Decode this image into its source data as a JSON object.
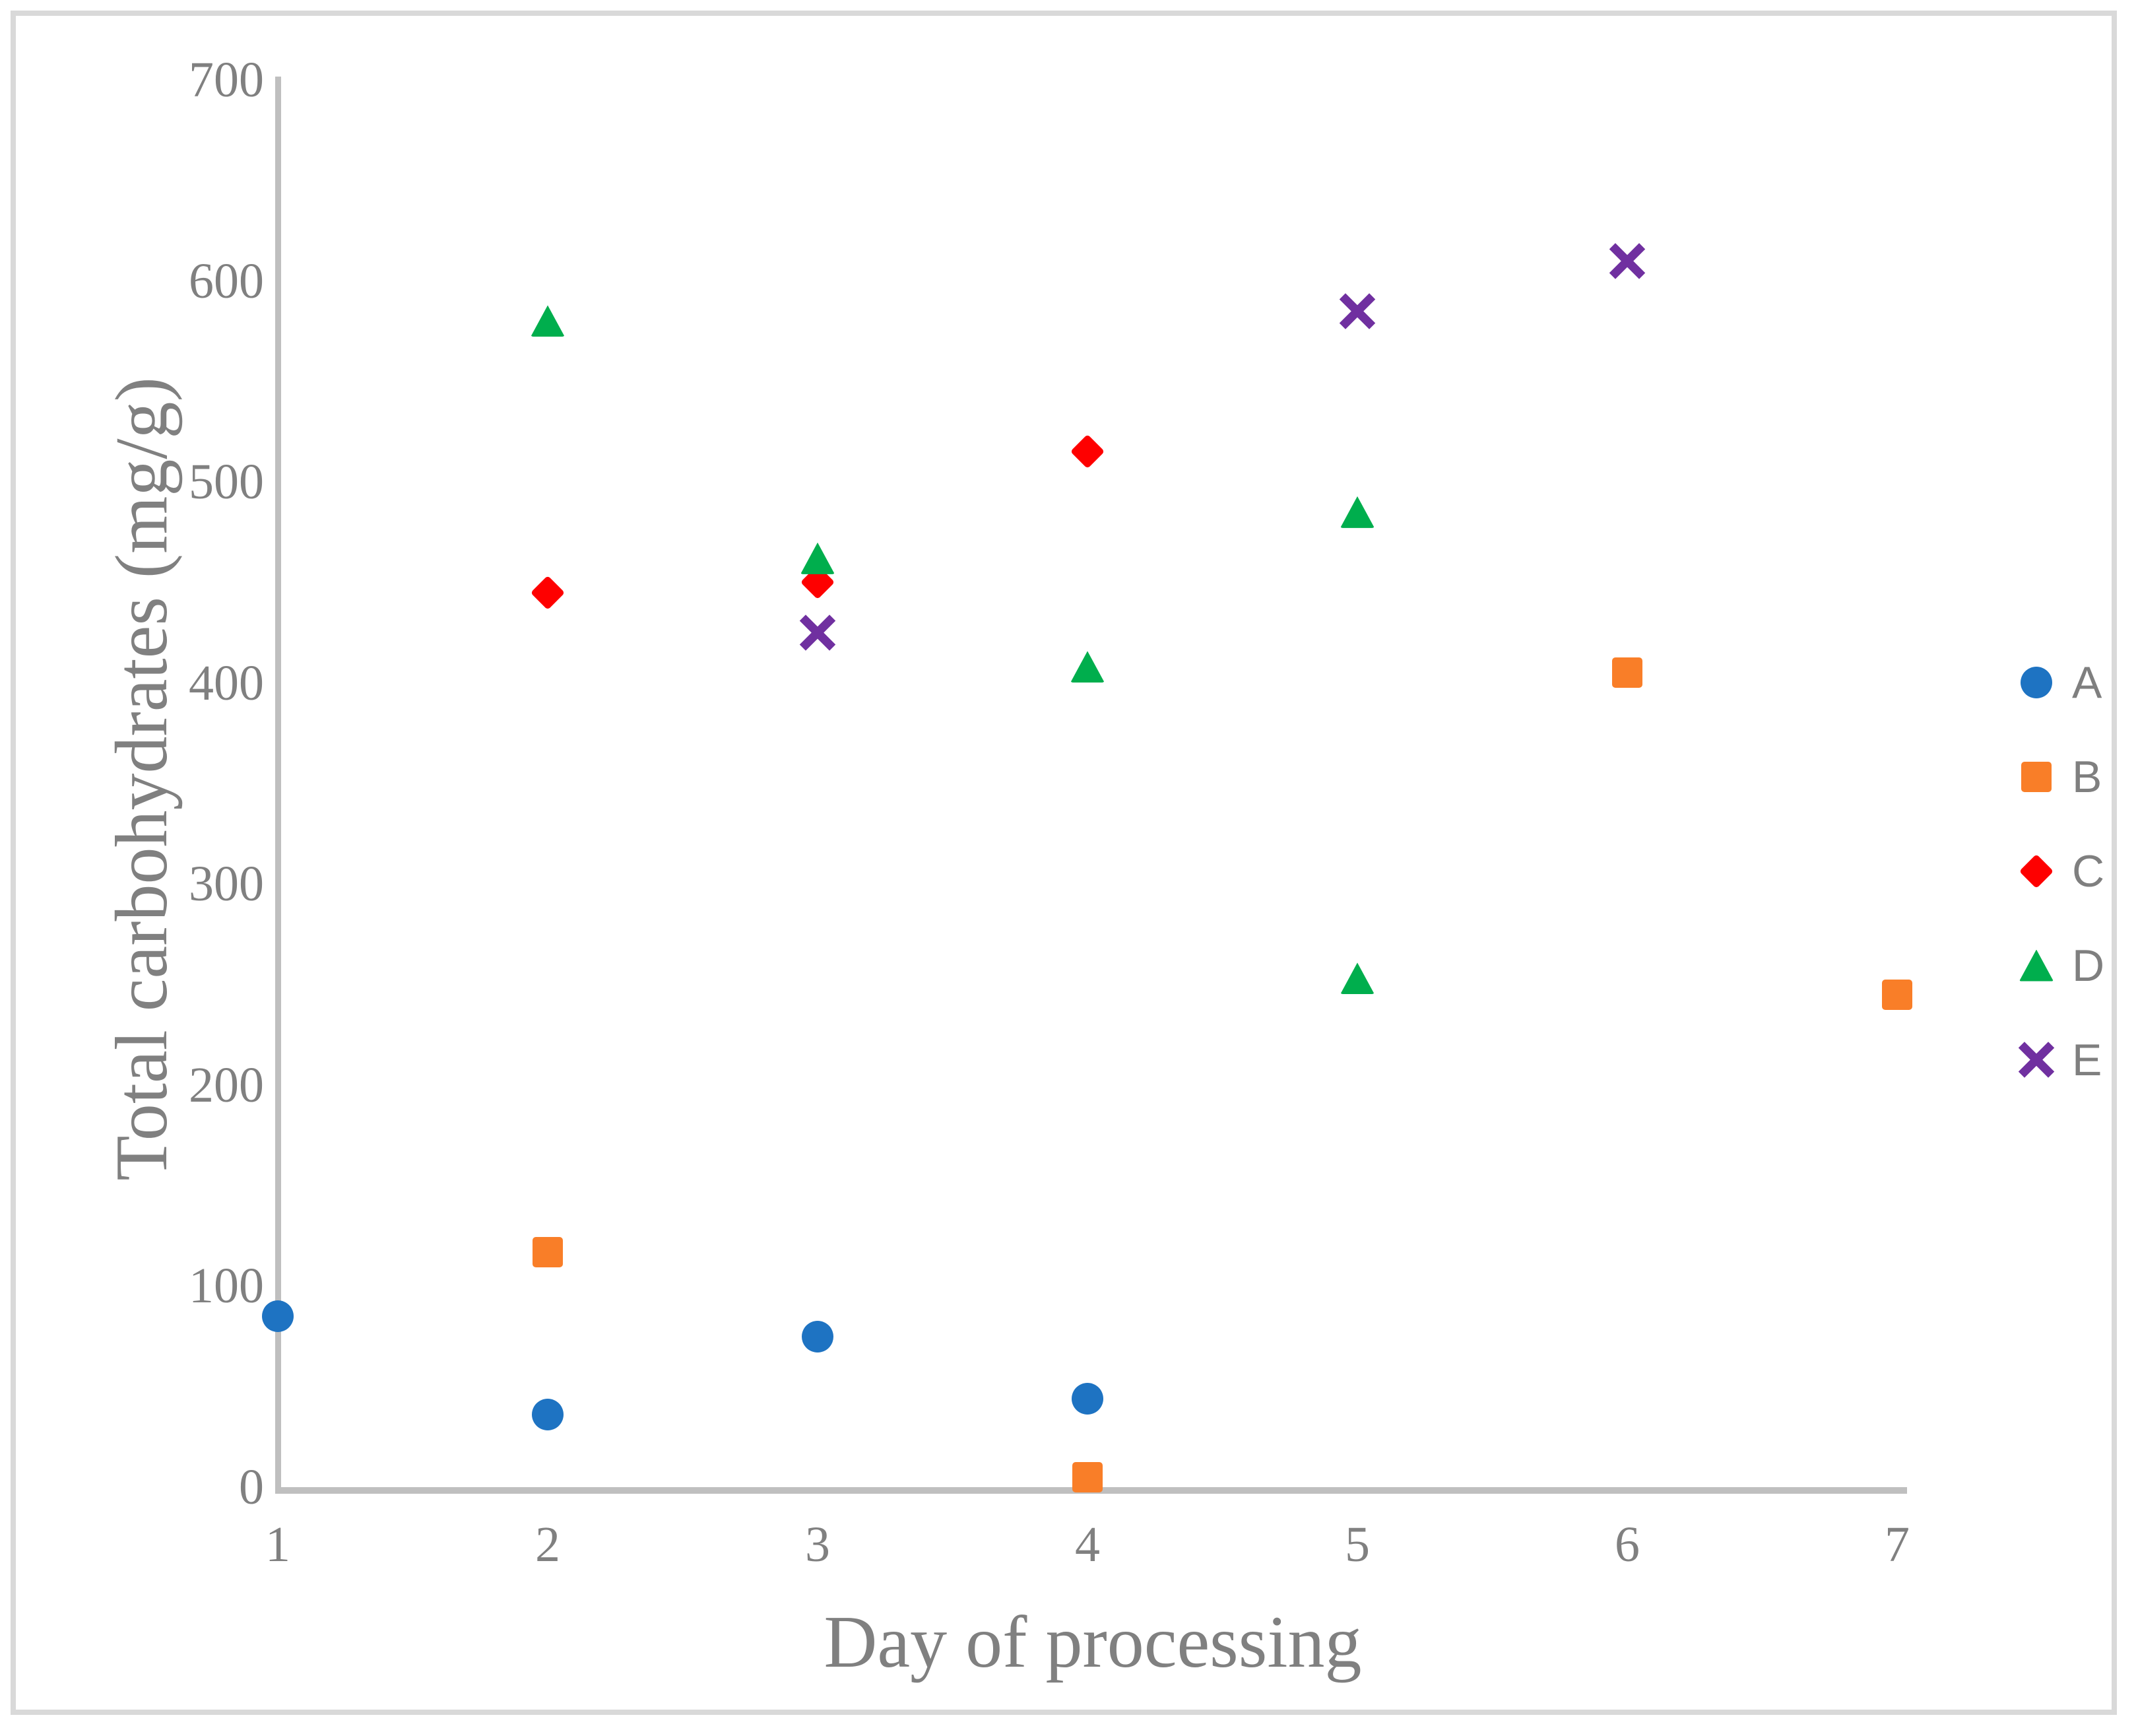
{
  "chart_data": {
    "type": "scatter",
    "title": "",
    "xlabel": "Day of processing",
    "ylabel": "Total carbohydrates (mg/g)",
    "xlim": [
      1,
      7
    ],
    "ylim": [
      0,
      700
    ],
    "x_ticks": [
      "1",
      "2",
      "3",
      "4",
      "5",
      "6",
      "7"
    ],
    "y_ticks": [
      "700",
      "600",
      "500",
      "400",
      "300",
      "200",
      "100",
      "0"
    ],
    "grid": "off",
    "legend_position": "right",
    "axis_line_color": "#BFBFBF",
    "text_color": "#808080",
    "border_color": "#D9D9D9",
    "series": [
      {
        "name": "A",
        "marker": "circle",
        "color": "#1E73C2",
        "points": [
          [
            1,
            85
          ],
          [
            2,
            36
          ],
          [
            3,
            75
          ],
          [
            4,
            44
          ]
        ]
      },
      {
        "name": "B",
        "marker": "square",
        "color": "#F97E28",
        "points": [
          [
            2,
            117
          ],
          [
            4,
            5
          ],
          [
            6,
            405
          ],
          [
            7,
            245
          ]
        ]
      },
      {
        "name": "C",
        "marker": "diamond",
        "color": "#FE0000",
        "points": [
          [
            2,
            445
          ],
          [
            3,
            450
          ],
          [
            4,
            515
          ]
        ]
      },
      {
        "name": "D",
        "marker": "triangle",
        "color": "#00AE4D",
        "points": [
          [
            2,
            580
          ],
          [
            3,
            462
          ],
          [
            4,
            408
          ],
          [
            5,
            485
          ],
          [
            5,
            253
          ]
        ]
      },
      {
        "name": "E",
        "marker": "x",
        "color": "#7030A0",
        "points": [
          [
            3,
            425
          ],
          [
            5,
            585
          ],
          [
            6,
            610
          ]
        ]
      }
    ]
  }
}
